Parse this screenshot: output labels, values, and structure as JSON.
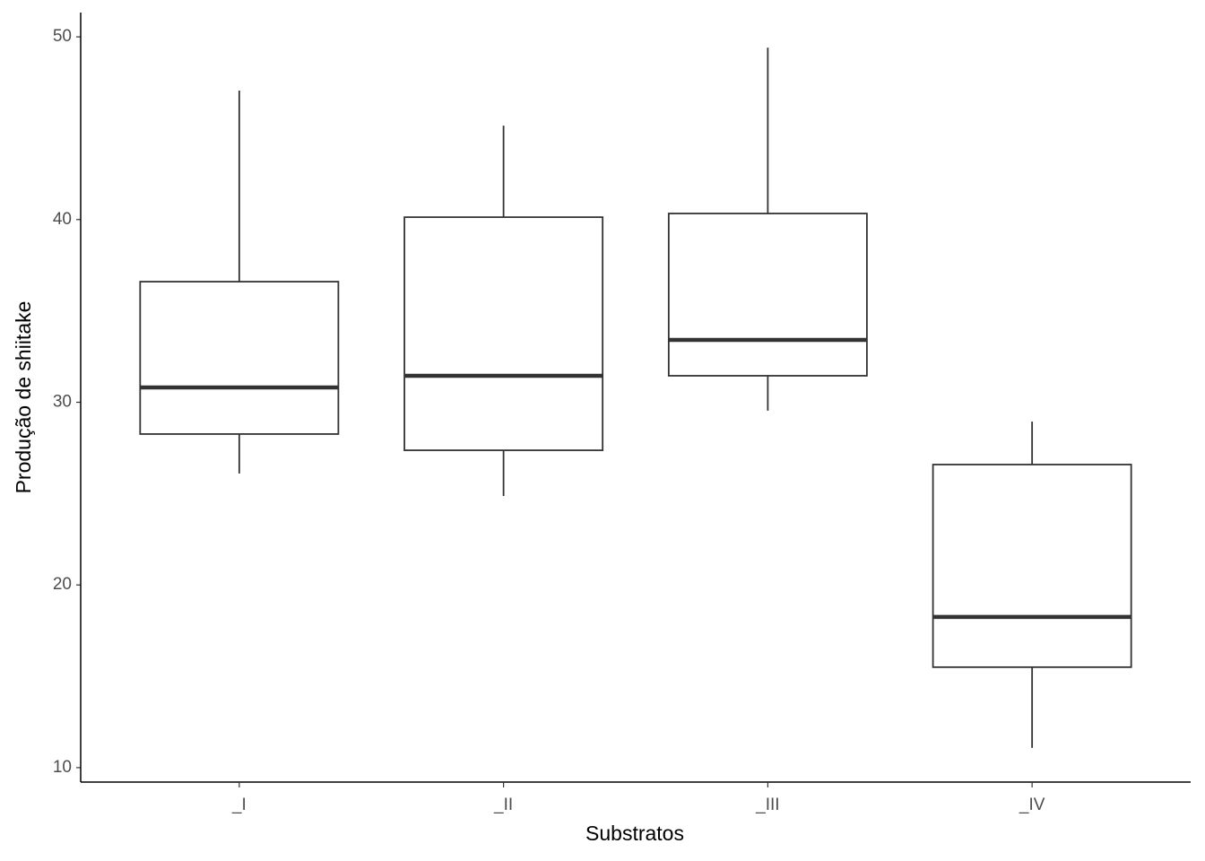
{
  "chart_data": {
    "type": "box",
    "x_label": "Substratos",
    "y_label": "Produção de shiitake",
    "categories": [
      "_I",
      "_II",
      "_III",
      "_IV"
    ],
    "min": [
      26.1,
      24.87,
      29.54,
      11.08
    ],
    "q1": [
      28.26,
      27.37,
      31.45,
      15.5
    ],
    "median": [
      30.81,
      31.45,
      33.41,
      18.25
    ],
    "q3": [
      36.6,
      40.13,
      40.33,
      26.59
    ],
    "max": [
      47.06,
      45.14,
      49.41,
      28.94
    ],
    "color": "#333333",
    "ylim": [
      9.21,
      51.33
    ],
    "yticks": [
      10,
      20,
      30,
      40,
      50
    ],
    "grid": false
  }
}
